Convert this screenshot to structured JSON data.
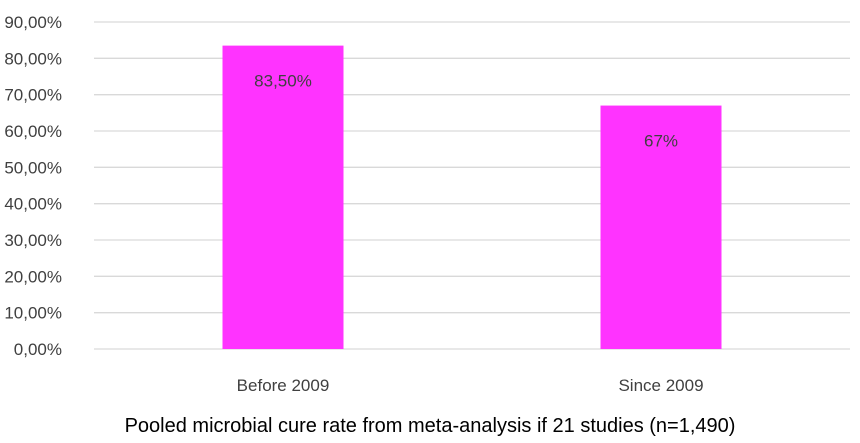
{
  "chart_data": {
    "type": "bar",
    "categories": [
      "Before 2009",
      "Since 2009"
    ],
    "values": [
      83.5,
      67
    ],
    "data_labels": [
      "83,50%",
      "67%"
    ],
    "y_tick_labels": [
      "0,00%",
      "10,00%",
      "20,00%",
      "30,00%",
      "40,00%",
      "50,00%",
      "60,00%",
      "70,00%",
      "80,00%",
      "90,00%"
    ],
    "y_ticks": [
      0,
      10,
      20,
      30,
      40,
      50,
      60,
      70,
      80,
      90
    ],
    "ylim": [
      0,
      90
    ],
    "title": "",
    "xlabel": "Pooled microbial cure rate from meta-analysis if 21 studies (n=1,490)",
    "ylabel": "",
    "grid": true,
    "legend": "none",
    "bar_color": "#ff33ff",
    "grid_color": "#d9d9d9",
    "text_color": "#404040"
  }
}
